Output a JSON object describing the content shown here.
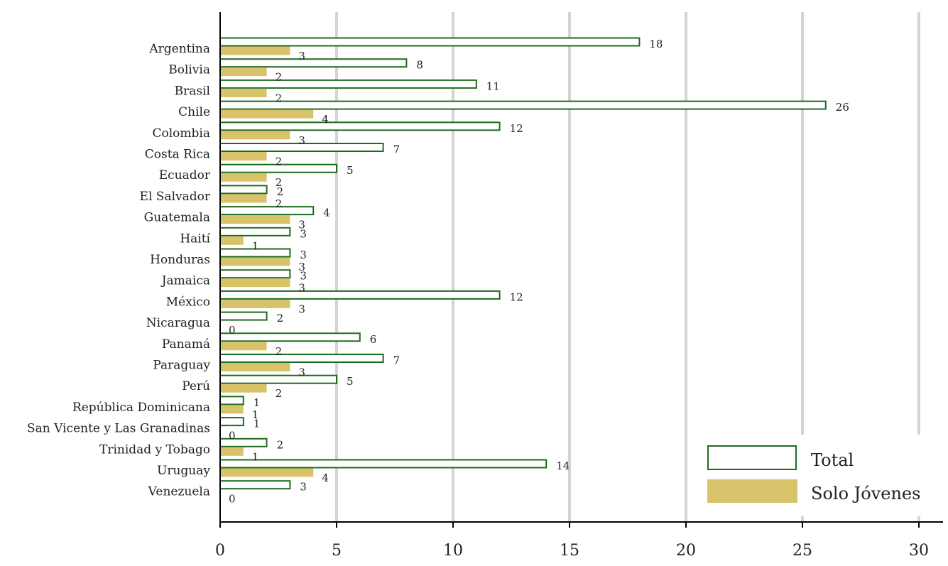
{
  "chart_data": {
    "type": "bar",
    "orientation": "horizontal",
    "categories": [
      "Argentina",
      "Bolivia",
      "Brasil",
      "Chile",
      "Colombia",
      "Costa Rica",
      "Ecuador",
      "El Salvador",
      "Guatemala",
      "Haití",
      "Honduras",
      "Jamaica",
      "México",
      "Nicaragua",
      "Panamá",
      "Paraguay",
      "Perú",
      "República Dominicana",
      "San Vicente y Las Granadinas",
      "Trinidad y Tobago",
      "Uruguay",
      "Venezuela"
    ],
    "series": [
      {
        "name": "Total",
        "style": "outline",
        "color": "#1e6b1e",
        "values": [
          18,
          8,
          11,
          26,
          12,
          7,
          5,
          2,
          4,
          3,
          3,
          3,
          12,
          2,
          6,
          7,
          5,
          1,
          1,
          2,
          14,
          3
        ]
      },
      {
        "name": "Solo Jóvenes",
        "style": "filled",
        "color": "#d9c36a",
        "values": [
          3,
          2,
          2,
          4,
          3,
          2,
          2,
          2,
          3,
          1,
          3,
          3,
          3,
          0,
          2,
          3,
          2,
          1,
          0,
          1,
          4,
          0
        ]
      }
    ],
    "xlim": [
      0,
      30
    ],
    "xticks": [
      "0",
      "5",
      "10",
      "15",
      "20",
      "25",
      "30"
    ],
    "grid": "vertical",
    "legend_position": "bottom-right",
    "title": "",
    "xlabel": "",
    "ylabel": ""
  }
}
